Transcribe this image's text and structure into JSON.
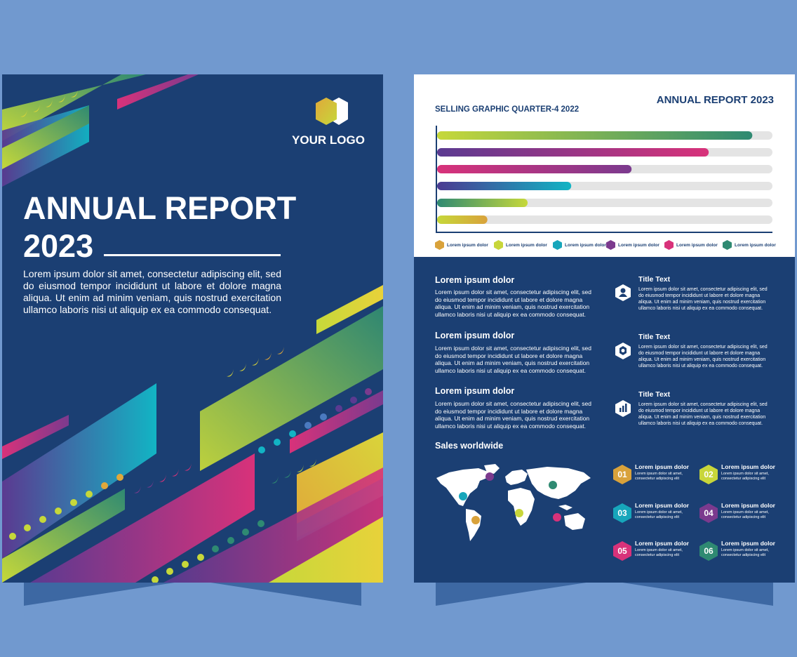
{
  "cover": {
    "logo_text": "YOUR LOGO",
    "title_line1": "ANNUAL REPORT",
    "title_line2": "2023",
    "body": "Lorem ipsum dolor sit amet, consectetur adipiscing elit, sed do eiusmod tempor incididunt ut labore et dolore magna aliqua. Ut enim ad minim veniam, quis nostrud exercitation ullamco laboris nisi ut aliquip ex ea commodo consequat."
  },
  "inner": {
    "report_title": "ANNUAL REPORT 2023",
    "chart_title": "SELLING GRAPHIC QUARTER-4 2022",
    "sections": [
      {
        "title": "Lorem ipsum dolor",
        "body": "Lorem ipsum dolor sit amet, consectetur adipiscing elit, sed do eiusmod tempor incididunt ut labore et dolore magna aliqua. Ut enim ad minim veniam, quis nostrud exercitation ullamco laboris nisi ut aliquip ex ea commodo consequat."
      },
      {
        "title": "Lorem ipsum dolor",
        "body": "Lorem ipsum dolor sit amet, consectetur adipiscing elit, sed do eiusmod tempor incididunt ut labore et dolore magna aliqua. Ut enim ad minim veniam, quis nostrud exercitation ullamco laboris nisi ut aliquip ex ea commodo consequat."
      },
      {
        "title": "Lorem ipsum dolor",
        "body": "Lorem ipsum dolor sit amet, consectetur adipiscing elit, sed do eiusmod tempor incididunt ut labore et dolore magna aliqua. Ut enim ad minim veniam, quis nostrud exercitation ullamco laboris nisi ut aliquip ex ea commodo consequat."
      }
    ],
    "side_items": [
      {
        "title": "Title Text",
        "body": "Lorem ipsum dolor sit amet, consectetur adipiscing elit, sed do eiusmod tempor incididunt ut labore et dolore magna aliqua. Ut enim ad minim veniam, quis nostrud exercitation ullamco laboris nisi ut aliquip ex ea commodo consequat.",
        "icon": "user-icon"
      },
      {
        "title": "Title Text",
        "body": "Lorem ipsum dolor sit amet, consectetur adipiscing elit, sed do eiusmod tempor incididunt ut labore et dolore magna aliqua. Ut enim ad minim veniam, quis nostrud exercitation ullamco laboris nisi ut aliquip ex ea commodo consequat.",
        "icon": "gear-icon"
      },
      {
        "title": "Title Text",
        "body": "Lorem ipsum dolor sit amet, consectetur adipiscing elit, sed do eiusmod tempor incididunt ut labore et dolore magna aliqua. Ut enim ad minim veniam, quis nostrud exercitation ullamco laboris nisi ut aliquip ex ea commodo consequat.",
        "icon": "bar-chart-icon"
      }
    ],
    "worldwide_title": "Sales worldwide",
    "numbered_items": [
      {
        "num": "01",
        "title": "Lorem ipsum dolor",
        "body": "Lorem ipsum dolor sit amet, consectetur adipiscing elit",
        "color": "#d9a23b"
      },
      {
        "num": "02",
        "title": "Lorem ipsum dolor",
        "body": "Lorem ipsum dolor sit amet, consectetur adipiscing elit",
        "color": "#c8d63a"
      },
      {
        "num": "03",
        "title": "Lorem ipsum dolor",
        "body": "Lorem ipsum dolor sit amet, consectetur adipiscing elit",
        "color": "#17a6bb"
      },
      {
        "num": "04",
        "title": "Lorem ipsum dolor",
        "body": "Lorem ipsum dolor sit amet, consectetur adipiscing elit",
        "color": "#7b3a8e"
      },
      {
        "num": "05",
        "title": "Lorem ipsum dolor",
        "body": "Lorem ipsum dolor sit amet, consectetur adipiscing elit",
        "color": "#d8327a"
      },
      {
        "num": "06",
        "title": "Lorem ipsum dolor",
        "body": "Lorem ipsum dolor sit amet, consectetur adipiscing elit",
        "color": "#2f8a72"
      }
    ]
  },
  "chart_data": {
    "type": "bar",
    "orientation": "horizontal",
    "title": "SELLING GRAPHIC QUARTER-4 2022",
    "categories": [
      "Lorem ipsum dolor",
      "Lorem ipsum dolor",
      "Lorem ipsum dolor",
      "Lorem ipsum dolor",
      "Lorem ipsum dolor",
      "Lorem ipsum dolor"
    ],
    "values": [
      94,
      81,
      58,
      40,
      27,
      15
    ],
    "max": 100,
    "grid": false,
    "legend_position": "bottom",
    "bar_colors": [
      [
        "#c6d83a",
        "#2f8a72"
      ],
      [
        "#5b3a91",
        "#d8327a"
      ],
      [
        "#d8327a",
        "#7b3a8e"
      ],
      [
        "#4b3a91",
        "#12b4c4"
      ],
      [
        "#2f8a72",
        "#c6d83a"
      ],
      [
        "#c6d83a",
        "#d9a23b"
      ]
    ],
    "legend": [
      {
        "label": "Lorem ipsum dolor",
        "color": "#d9a23b"
      },
      {
        "label": "Lorem ipsum dolor",
        "color": "#c8d63a"
      },
      {
        "label": "Lorem ipsum dolor",
        "color": "#17a6bb"
      },
      {
        "label": "Lorem ipsum dolor",
        "color": "#7b3a8e"
      },
      {
        "label": "Lorem ipsum dolor",
        "color": "#d8327a"
      },
      {
        "label": "Lorem ipsum dolor",
        "color": "#2f8a72"
      }
    ]
  },
  "map_points": [
    {
      "color": "#7b3a8e"
    },
    {
      "color": "#17a6bb"
    },
    {
      "color": "#d9a23b"
    },
    {
      "color": "#2f8a72"
    },
    {
      "color": "#c8d63a"
    },
    {
      "color": "#d8327a"
    }
  ]
}
